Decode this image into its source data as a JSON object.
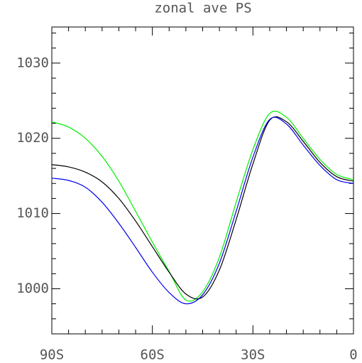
{
  "chart_data": {
    "type": "line",
    "title": "zonal ave PS",
    "x": [
      -90,
      -85,
      -80,
      -75,
      -70,
      -65,
      -60,
      -55,
      -50,
      -45,
      -40,
      -35,
      -30,
      -25,
      -20,
      -15,
      -10,
      -5,
      0
    ],
    "series": [
      {
        "color": "#00ee00",
        "values": [
          1022.2,
          1021.5,
          1020.0,
          1017.6,
          1014.3,
          1010.3,
          1006.2,
          1002.3,
          998.5,
          999.6,
          1004.2,
          1011.5,
          1018.5,
          1023.3,
          1022.8,
          1020.0,
          1017.2,
          1015.2,
          1014.5
        ]
      },
      {
        "color": "#000000",
        "values": [
          1016.5,
          1016.2,
          1015.5,
          1014.2,
          1012.0,
          1009.0,
          1005.6,
          1002.2,
          999.3,
          998.9,
          1002.5,
          1009.2,
          1016.6,
          1022.4,
          1022.2,
          1019.6,
          1016.8,
          1014.9,
          1014.3
        ]
      },
      {
        "color": "#0000ee",
        "values": [
          1014.7,
          1014.4,
          1013.5,
          1011.5,
          1008.7,
          1005.5,
          1002.2,
          999.5,
          998.0,
          999.2,
          1003.4,
          1010.3,
          1017.5,
          1022.5,
          1021.9,
          1019.1,
          1016.4,
          1014.5,
          1014.0
        ]
      }
    ],
    "xlim": [
      -90,
      0
    ],
    "xticks": [
      {
        "value": -90,
        "label": "90S"
      },
      {
        "value": -60,
        "label": "60S"
      },
      {
        "value": -30,
        "label": "30S"
      },
      0
    ],
    "xminorticks": [
      -85,
      -80,
      -75,
      -70,
      -65,
      -55,
      -50,
      -45,
      -40,
      -35,
      -25,
      -20,
      -15,
      -10,
      -5
    ],
    "ylim": [
      994,
      1034.8
    ],
    "yticks": [
      1000,
      1010,
      1020,
      1030
    ],
    "yminorticks": [
      996,
      998,
      1002,
      1004,
      1006,
      1008,
      1012,
      1014,
      1016,
      1018,
      1022,
      1024,
      1026,
      1028,
      1032,
      1034
    ]
  }
}
